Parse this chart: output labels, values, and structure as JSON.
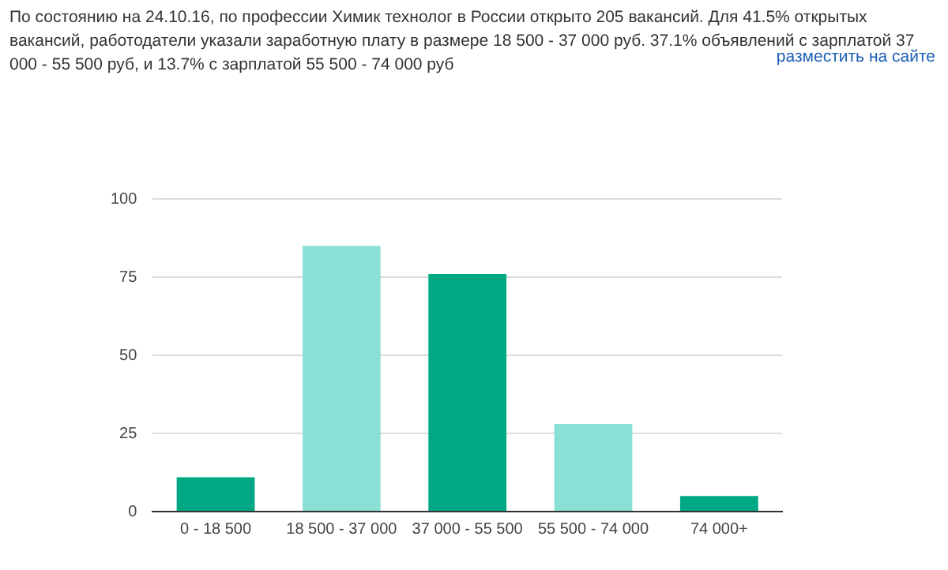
{
  "chart_data": {
    "type": "bar",
    "subtitle": "По состоянию на 24.10.16, по профессии Химик технолог в России открыто 205 вакансий. Для 41.5% открытых вакансий, работодатели указали заработную плату в размере 18 500 - 37 000 руб. 37.1% объявлений с зарплатой 37 000 - 55 500 руб, и 13.7% с зарплатой 55 500 - 74 000 руб",
    "annotations": [
      "разместить на сайте"
    ],
    "categories": [
      "0 - 18 500",
      "18 500 - 37 000",
      "37 000 - 55 500",
      "55 500 - 74 000",
      "74 000+"
    ],
    "values": [
      11,
      85,
      76,
      28,
      5
    ],
    "colors": [
      "#00a884",
      "#8ae0d5",
      "#00a884",
      "#8ae0d5",
      "#00a884"
    ],
    "ylim": [
      0,
      100
    ],
    "yticks": [
      0,
      25,
      50,
      75,
      100
    ],
    "grid": "y"
  }
}
